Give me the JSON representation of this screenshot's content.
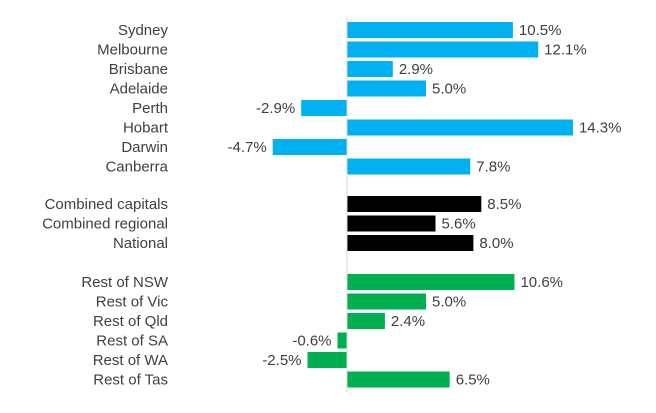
{
  "chart_data": {
    "type": "bar",
    "orientation": "horizontal",
    "title": "",
    "xlabel": "",
    "ylabel": "",
    "value_format": "percent_1dp",
    "groups": [
      {
        "name": "Capital cities",
        "color": "#00B0F0",
        "categories": [
          "Sydney",
          "Melbourne",
          "Brisbane",
          "Adelaide",
          "Perth",
          "Hobart",
          "Darwin",
          "Canberra"
        ],
        "values": [
          10.5,
          12.1,
          2.9,
          5.0,
          -2.9,
          14.3,
          -4.7,
          7.8
        ],
        "labels": [
          "10.5%",
          "12.1%",
          "2.9%",
          "5.0%",
          "-2.9%",
          "14.3%",
          "-4.7%",
          "7.8%"
        ]
      },
      {
        "name": "Aggregates",
        "color": "#000000",
        "categories": [
          "Combined capitals",
          "Combined regional",
          "National"
        ],
        "values": [
          8.5,
          5.6,
          8.0
        ],
        "labels": [
          "8.5%",
          "5.6%",
          "8.0%"
        ]
      },
      {
        "name": "Regional",
        "color": "#00B050",
        "categories": [
          "Rest of NSW",
          "Rest of Vic",
          "Rest of Qld",
          "Rest of SA",
          "Rest of WA",
          "Rest of Tas"
        ],
        "values": [
          10.6,
          5.0,
          2.4,
          -0.6,
          -2.5,
          6.5
        ],
        "labels": [
          "10.6%",
          "5.0%",
          "2.4%",
          "-0.6%",
          "-2.5%",
          "6.5%"
        ]
      }
    ],
    "xlim": [
      -5,
      15
    ],
    "grid": false,
    "legend": "none",
    "axis_color": "#D9D9D9",
    "label_color": "#404040"
  }
}
